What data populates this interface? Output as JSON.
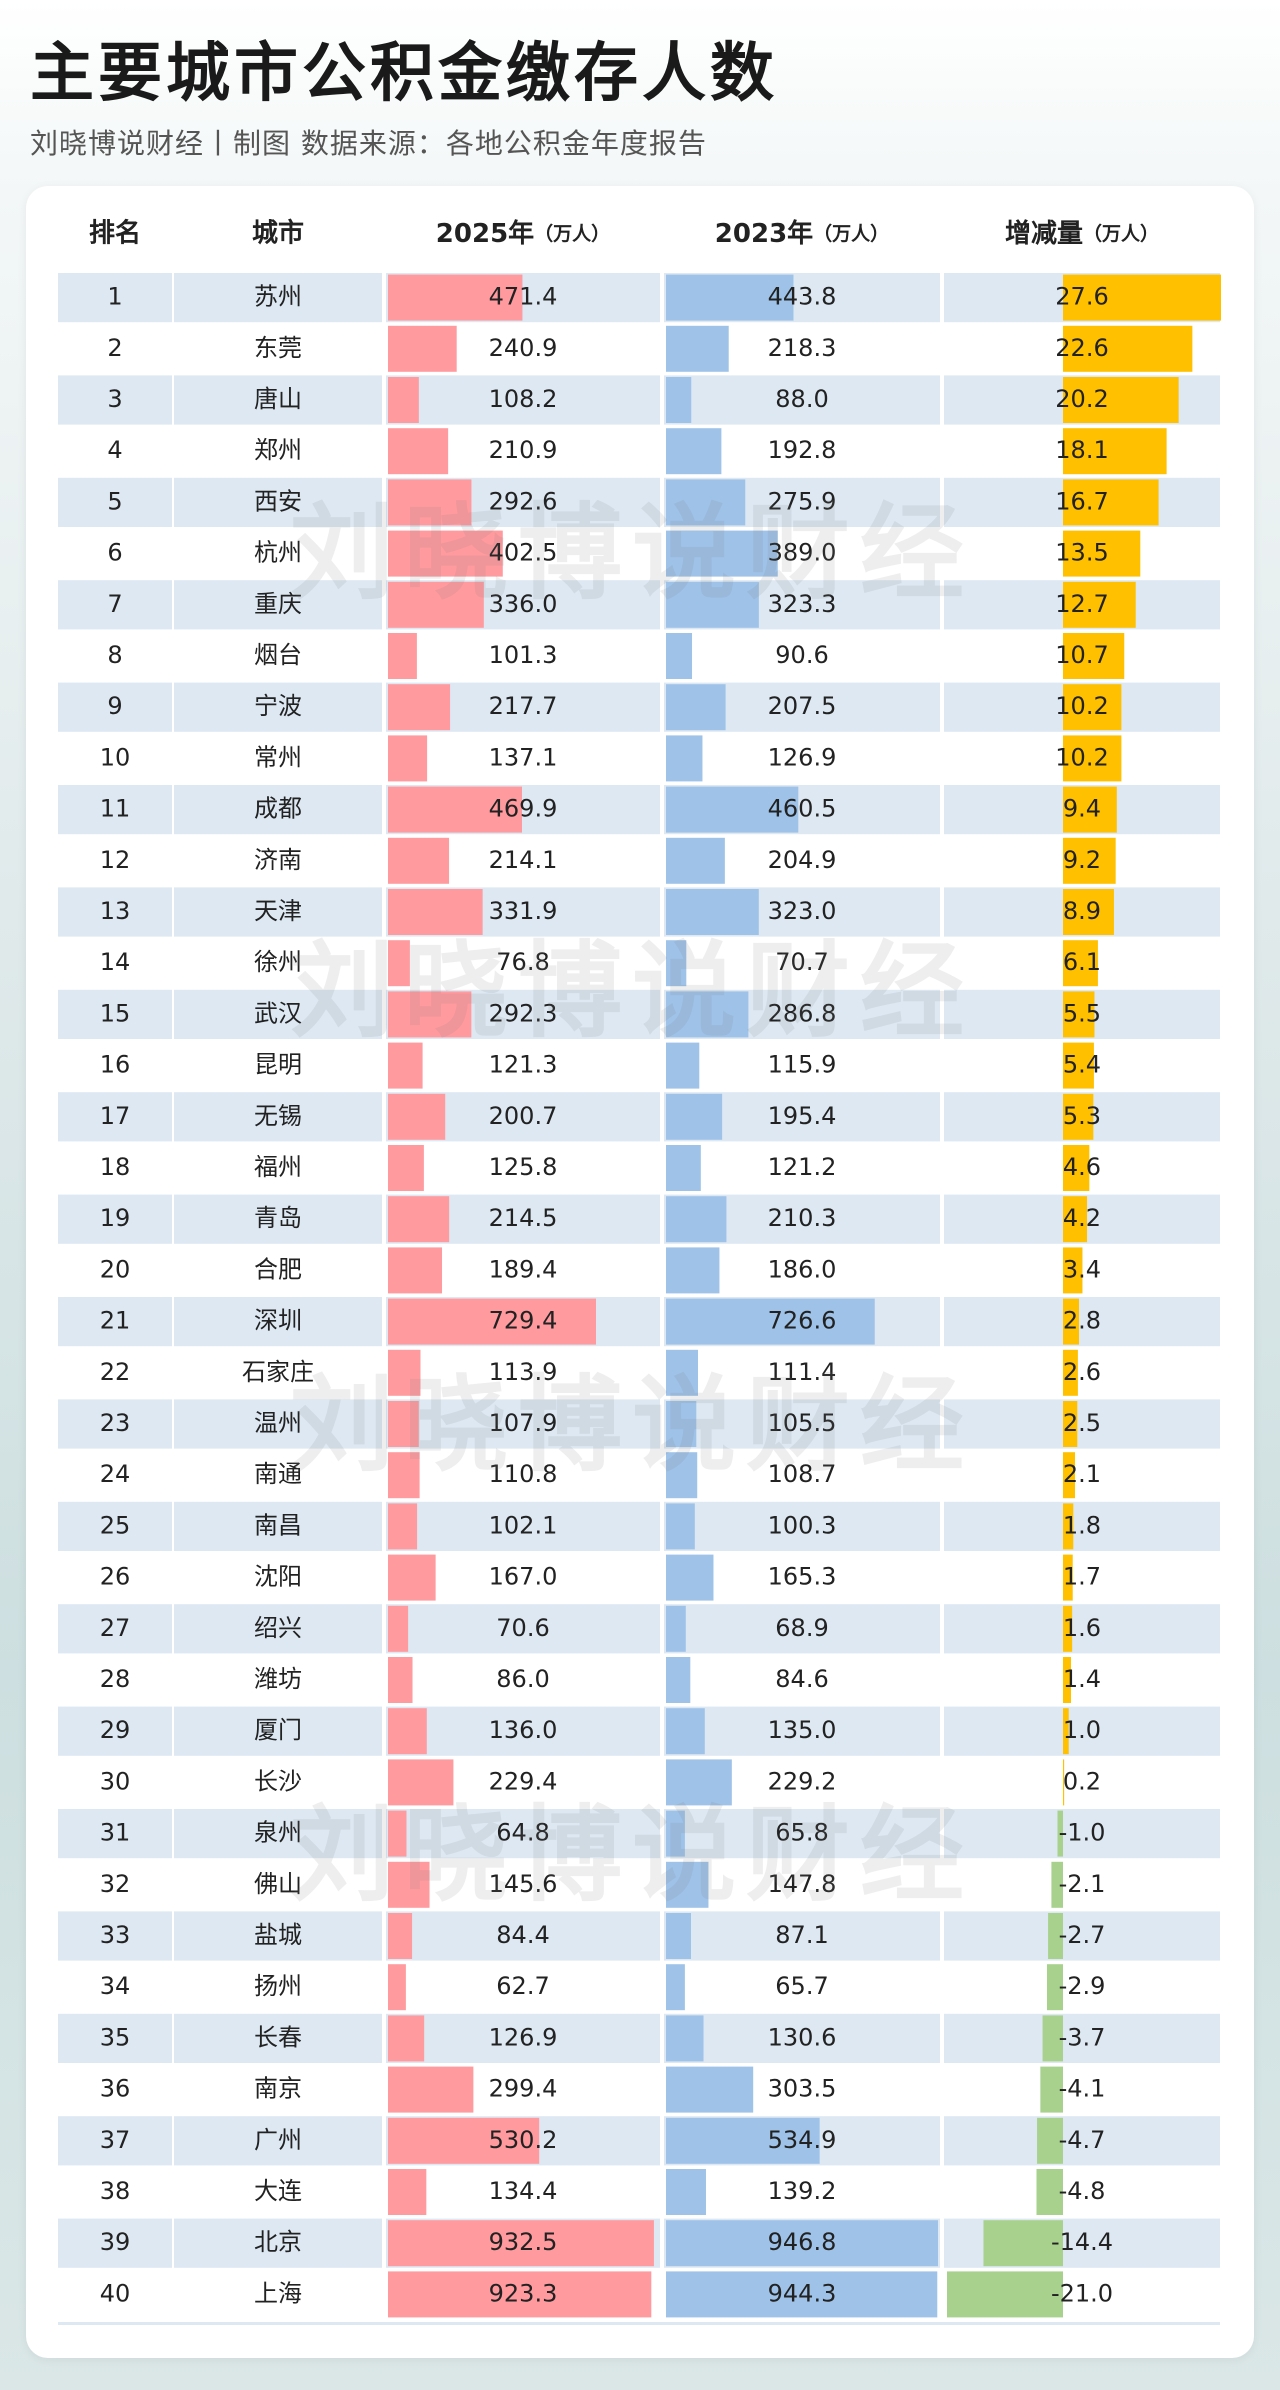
{
  "header": {
    "title": "主要城市公积金缴存人数",
    "subtitle": "刘晓博说财经丨制图   数据来源：各地公积金年度报告"
  },
  "watermark": "刘晓博说财经",
  "colors": {
    "col_2025": "#ff9a9e",
    "col_2023": "#9fc3e8",
    "change_pos": "#ffc000",
    "change_neg": "#a9d18e",
    "row_stripe": "#dde8f3"
  },
  "chart_data": {
    "type": "table",
    "columns": [
      "排名",
      "城市",
      "2025年（万人）",
      "2023年（万人）",
      "增减量（万人）"
    ],
    "headers": {
      "rank": "排名",
      "city": "城市",
      "y2025": "2025年",
      "y2023": "2023年",
      "change": "增减量",
      "unit": "（万人）"
    },
    "rows": [
      {
        "rank": "1",
        "city": "苏州",
        "y2025": 471.4,
        "y2023": 443.8,
        "change": 27.6
      },
      {
        "rank": "2",
        "city": "东莞",
        "y2025": 240.9,
        "y2023": 218.3,
        "change": 22.6
      },
      {
        "rank": "3",
        "city": "唐山",
        "y2025": 108.2,
        "y2023": 88.0,
        "change": 20.2
      },
      {
        "rank": "4",
        "city": "郑州",
        "y2025": 210.9,
        "y2023": 192.8,
        "change": 18.1
      },
      {
        "rank": "5",
        "city": "西安",
        "y2025": 292.6,
        "y2023": 275.9,
        "change": 16.7
      },
      {
        "rank": "6",
        "city": "杭州",
        "y2025": 402.5,
        "y2023": 389.0,
        "change": 13.5
      },
      {
        "rank": "7",
        "city": "重庆",
        "y2025": 336.0,
        "y2023": 323.3,
        "change": 12.7
      },
      {
        "rank": "8",
        "city": "烟台",
        "y2025": 101.3,
        "y2023": 90.6,
        "change": 10.7
      },
      {
        "rank": "9",
        "city": "宁波",
        "y2025": 217.7,
        "y2023": 207.5,
        "change": 10.2
      },
      {
        "rank": "10",
        "city": "常州",
        "y2025": 137.1,
        "y2023": 126.9,
        "change": 10.2
      },
      {
        "rank": "11",
        "city": "成都",
        "y2025": 469.9,
        "y2023": 460.5,
        "change": 9.4
      },
      {
        "rank": "12",
        "city": "济南",
        "y2025": 214.1,
        "y2023": 204.9,
        "change": 9.2
      },
      {
        "rank": "13",
        "city": "天津",
        "y2025": 331.9,
        "y2023": 323.0,
        "change": 8.9
      },
      {
        "rank": "14",
        "city": "徐州",
        "y2025": 76.8,
        "y2023": 70.7,
        "change": 6.1
      },
      {
        "rank": "15",
        "city": "武汉",
        "y2025": 292.3,
        "y2023": 286.8,
        "change": 5.5
      },
      {
        "rank": "16",
        "city": "昆明",
        "y2025": 121.3,
        "y2023": 115.9,
        "change": 5.4
      },
      {
        "rank": "17",
        "city": "无锡",
        "y2025": 200.7,
        "y2023": 195.4,
        "change": 5.3
      },
      {
        "rank": "18",
        "city": "福州",
        "y2025": 125.8,
        "y2023": 121.2,
        "change": 4.6
      },
      {
        "rank": "19",
        "city": "青岛",
        "y2025": 214.5,
        "y2023": 210.3,
        "change": 4.2
      },
      {
        "rank": "20",
        "city": "合肥",
        "y2025": 189.4,
        "y2023": 186.0,
        "change": 3.4
      },
      {
        "rank": "21",
        "city": "深圳",
        "y2025": 729.4,
        "y2023": 726.6,
        "change": 2.8
      },
      {
        "rank": "22",
        "city": "石家庄",
        "y2025": 113.9,
        "y2023": 111.4,
        "change": 2.6
      },
      {
        "rank": "23",
        "city": "温州",
        "y2025": 107.9,
        "y2023": 105.5,
        "change": 2.5
      },
      {
        "rank": "24",
        "city": "南通",
        "y2025": 110.8,
        "y2023": 108.7,
        "change": 2.1
      },
      {
        "rank": "25",
        "city": "南昌",
        "y2025": 102.1,
        "y2023": 100.3,
        "change": 1.8
      },
      {
        "rank": "26",
        "city": "沈阳",
        "y2025": 167.0,
        "y2023": 165.3,
        "change": 1.7
      },
      {
        "rank": "27",
        "city": "绍兴",
        "y2025": 70.6,
        "y2023": 68.9,
        "change": 1.6
      },
      {
        "rank": "28",
        "city": "潍坊",
        "y2025": 86.0,
        "y2023": 84.6,
        "change": 1.4
      },
      {
        "rank": "29",
        "city": "厦门",
        "y2025": 136.0,
        "y2023": 135.0,
        "change": 1.0
      },
      {
        "rank": "30",
        "city": "长沙",
        "y2025": 229.4,
        "y2023": 229.2,
        "change": 0.2
      },
      {
        "rank": "31",
        "city": "泉州",
        "y2025": 64.8,
        "y2023": 65.8,
        "change": -1.0
      },
      {
        "rank": "32",
        "city": "佛山",
        "y2025": 145.6,
        "y2023": 147.8,
        "change": -2.1
      },
      {
        "rank": "33",
        "city": "盐城",
        "y2025": 84.4,
        "y2023": 87.1,
        "change": -2.7
      },
      {
        "rank": "34",
        "city": "扬州",
        "y2025": 62.7,
        "y2023": 65.7,
        "change": -2.9
      },
      {
        "rank": "35",
        "city": "长春",
        "y2025": 126.9,
        "y2023": 130.6,
        "change": -3.7
      },
      {
        "rank": "36",
        "city": "南京",
        "y2025": 299.4,
        "y2023": 303.5,
        "change": -4.1
      },
      {
        "rank": "37",
        "city": "广州",
        "y2025": 530.2,
        "y2023": 534.9,
        "change": -4.7
      },
      {
        "rank": "38",
        "city": "大连",
        "y2025": 134.4,
        "y2023": 139.2,
        "change": -4.8
      },
      {
        "rank": "39",
        "city": "北京",
        "y2025": 932.5,
        "y2023": 946.8,
        "change": -14.4
      },
      {
        "rank": "40",
        "city": "上海",
        "y2025": 923.3,
        "y2023": 944.3,
        "change": -21.0
      }
    ],
    "bar_scale_max": {
      "y2025": 946.8,
      "y2023": 946.8,
      "change_pos": 27.6,
      "change_neg": 21.0
    }
  }
}
